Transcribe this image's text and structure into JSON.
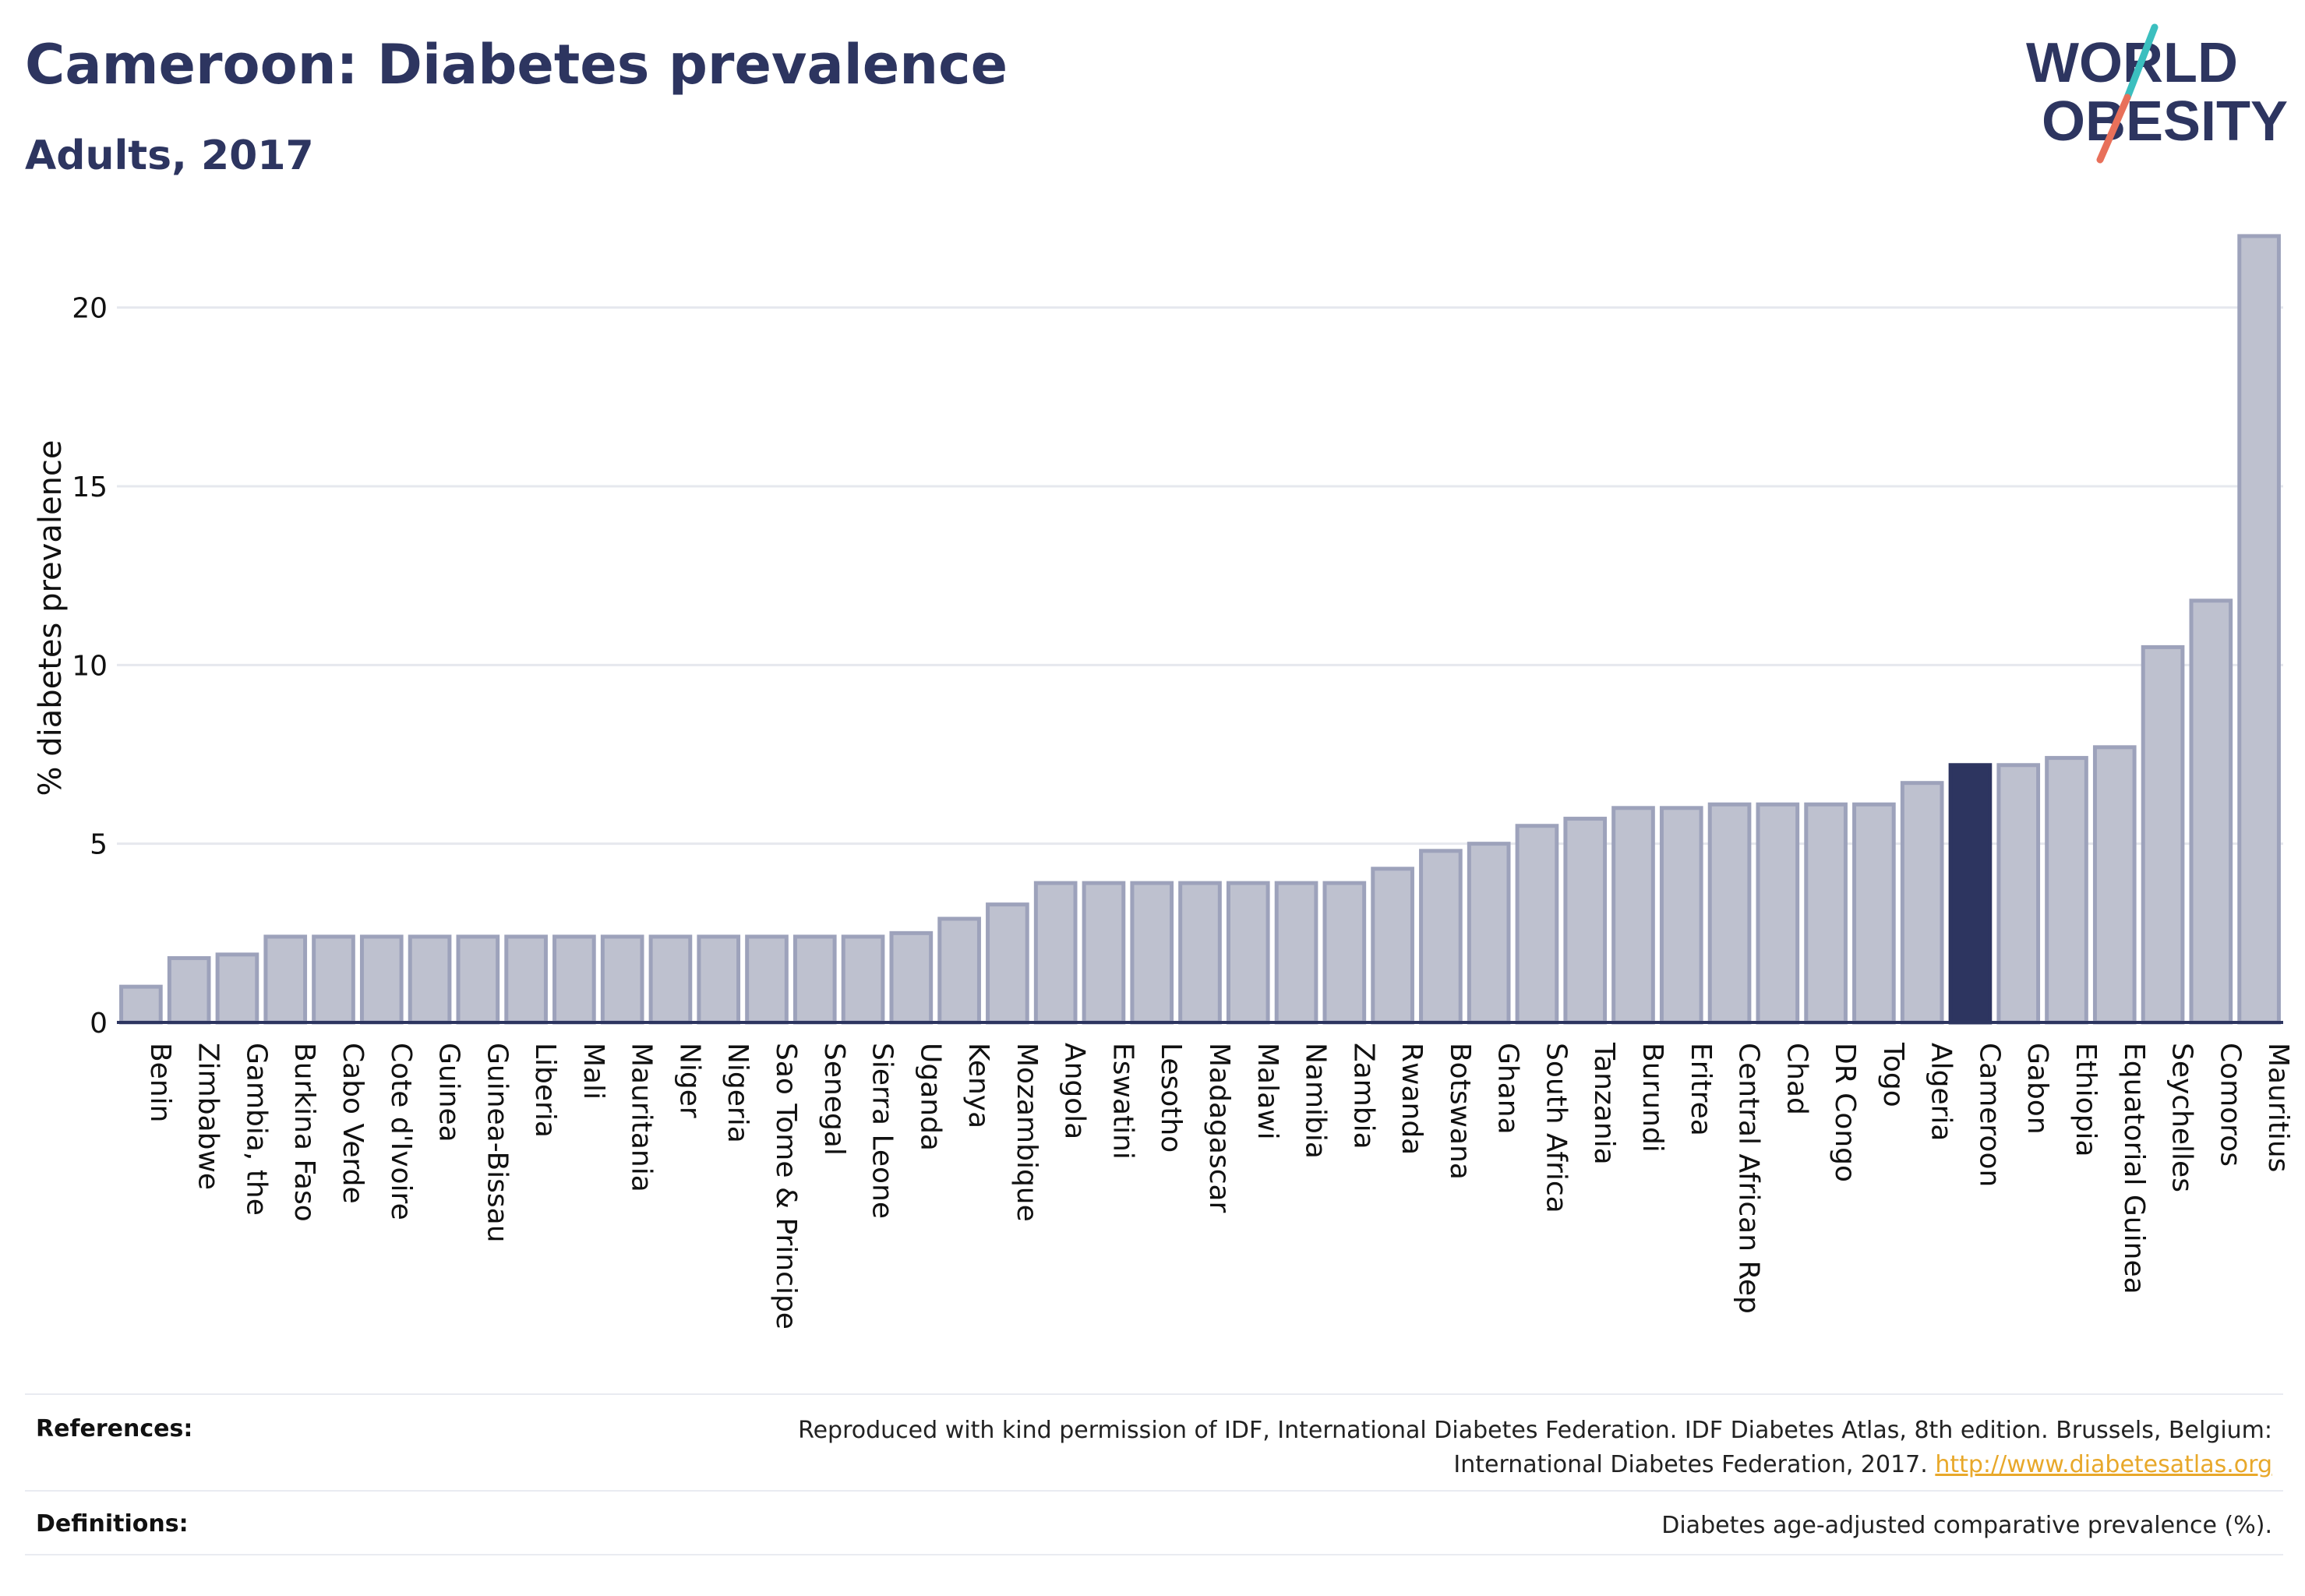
{
  "header": {
    "title": "Cameroon: Diabetes prevalence",
    "subtitle": "Adults, 2017"
  },
  "logo": {
    "line1": "WORLD",
    "line2": "OBESITY",
    "colors": {
      "text": "#2d3560",
      "slash_top": "#3bbfbf",
      "slash_bottom": "#e8705a"
    }
  },
  "chart_data": {
    "type": "bar",
    "title": "Cameroon: Diabetes prevalence",
    "subtitle": "Adults, 2017",
    "xlabel": "",
    "ylabel": "% diabetes prevalence",
    "ylim": [
      0,
      22.5
    ],
    "yticks": [
      0,
      5,
      10,
      15,
      20
    ],
    "grid": true,
    "highlight": "Cameroon",
    "colors": {
      "bar": "#bec1cf",
      "bar_stroke": "#9da2bb",
      "highlight": "#2d3560",
      "grid": "#e6e8ee",
      "axis": "#2d3560"
    },
    "categories": [
      "Benin",
      "Zimbabwe",
      "Gambia, the",
      "Burkina Faso",
      "Cabo Verde",
      "Cote d'Ivoire",
      "Guinea",
      "Guinea-Bissau",
      "Liberia",
      "Mali",
      "Mauritania",
      "Niger",
      "Nigeria",
      "Sao Tome & Principe",
      "Senegal",
      "Sierra Leone",
      "Uganda",
      "Kenya",
      "Mozambique",
      "Angola",
      "Eswatini",
      "Lesotho",
      "Madagascar",
      "Malawi",
      "Namibia",
      "Zambia",
      "Rwanda",
      "Botswana",
      "Ghana",
      "South Africa",
      "Tanzania",
      "Burundi",
      "Eritrea",
      "Central African Rep",
      "Chad",
      "DR Congo",
      "Togo",
      "Algeria",
      "Cameroon",
      "Gabon",
      "Ethiopia",
      "Equatorial Guinea",
      "Seychelles",
      "Comoros",
      "Mauritius"
    ],
    "values": [
      1.0,
      1.8,
      1.9,
      2.4,
      2.4,
      2.4,
      2.4,
      2.4,
      2.4,
      2.4,
      2.4,
      2.4,
      2.4,
      2.4,
      2.4,
      2.4,
      2.5,
      2.9,
      3.3,
      3.9,
      3.9,
      3.9,
      3.9,
      3.9,
      3.9,
      3.9,
      4.3,
      4.8,
      5.0,
      5.5,
      5.7,
      6.0,
      6.0,
      6.1,
      6.1,
      6.1,
      6.1,
      6.7,
      7.2,
      7.2,
      7.4,
      7.7,
      10.5,
      11.8,
      22.0
    ]
  },
  "references": {
    "label": "References:",
    "text_line1": "Reproduced with kind permission of IDF, International Diabetes Federation. IDF Diabetes Atlas, 8th edition. Brussels, Belgium:",
    "text_line2": "International Diabetes Federation, 2017.",
    "link": "http://www.diabetesatlas.org"
  },
  "definitions": {
    "label": "Definitions:",
    "text": "Diabetes age-adjusted comparative prevalence (%)."
  }
}
